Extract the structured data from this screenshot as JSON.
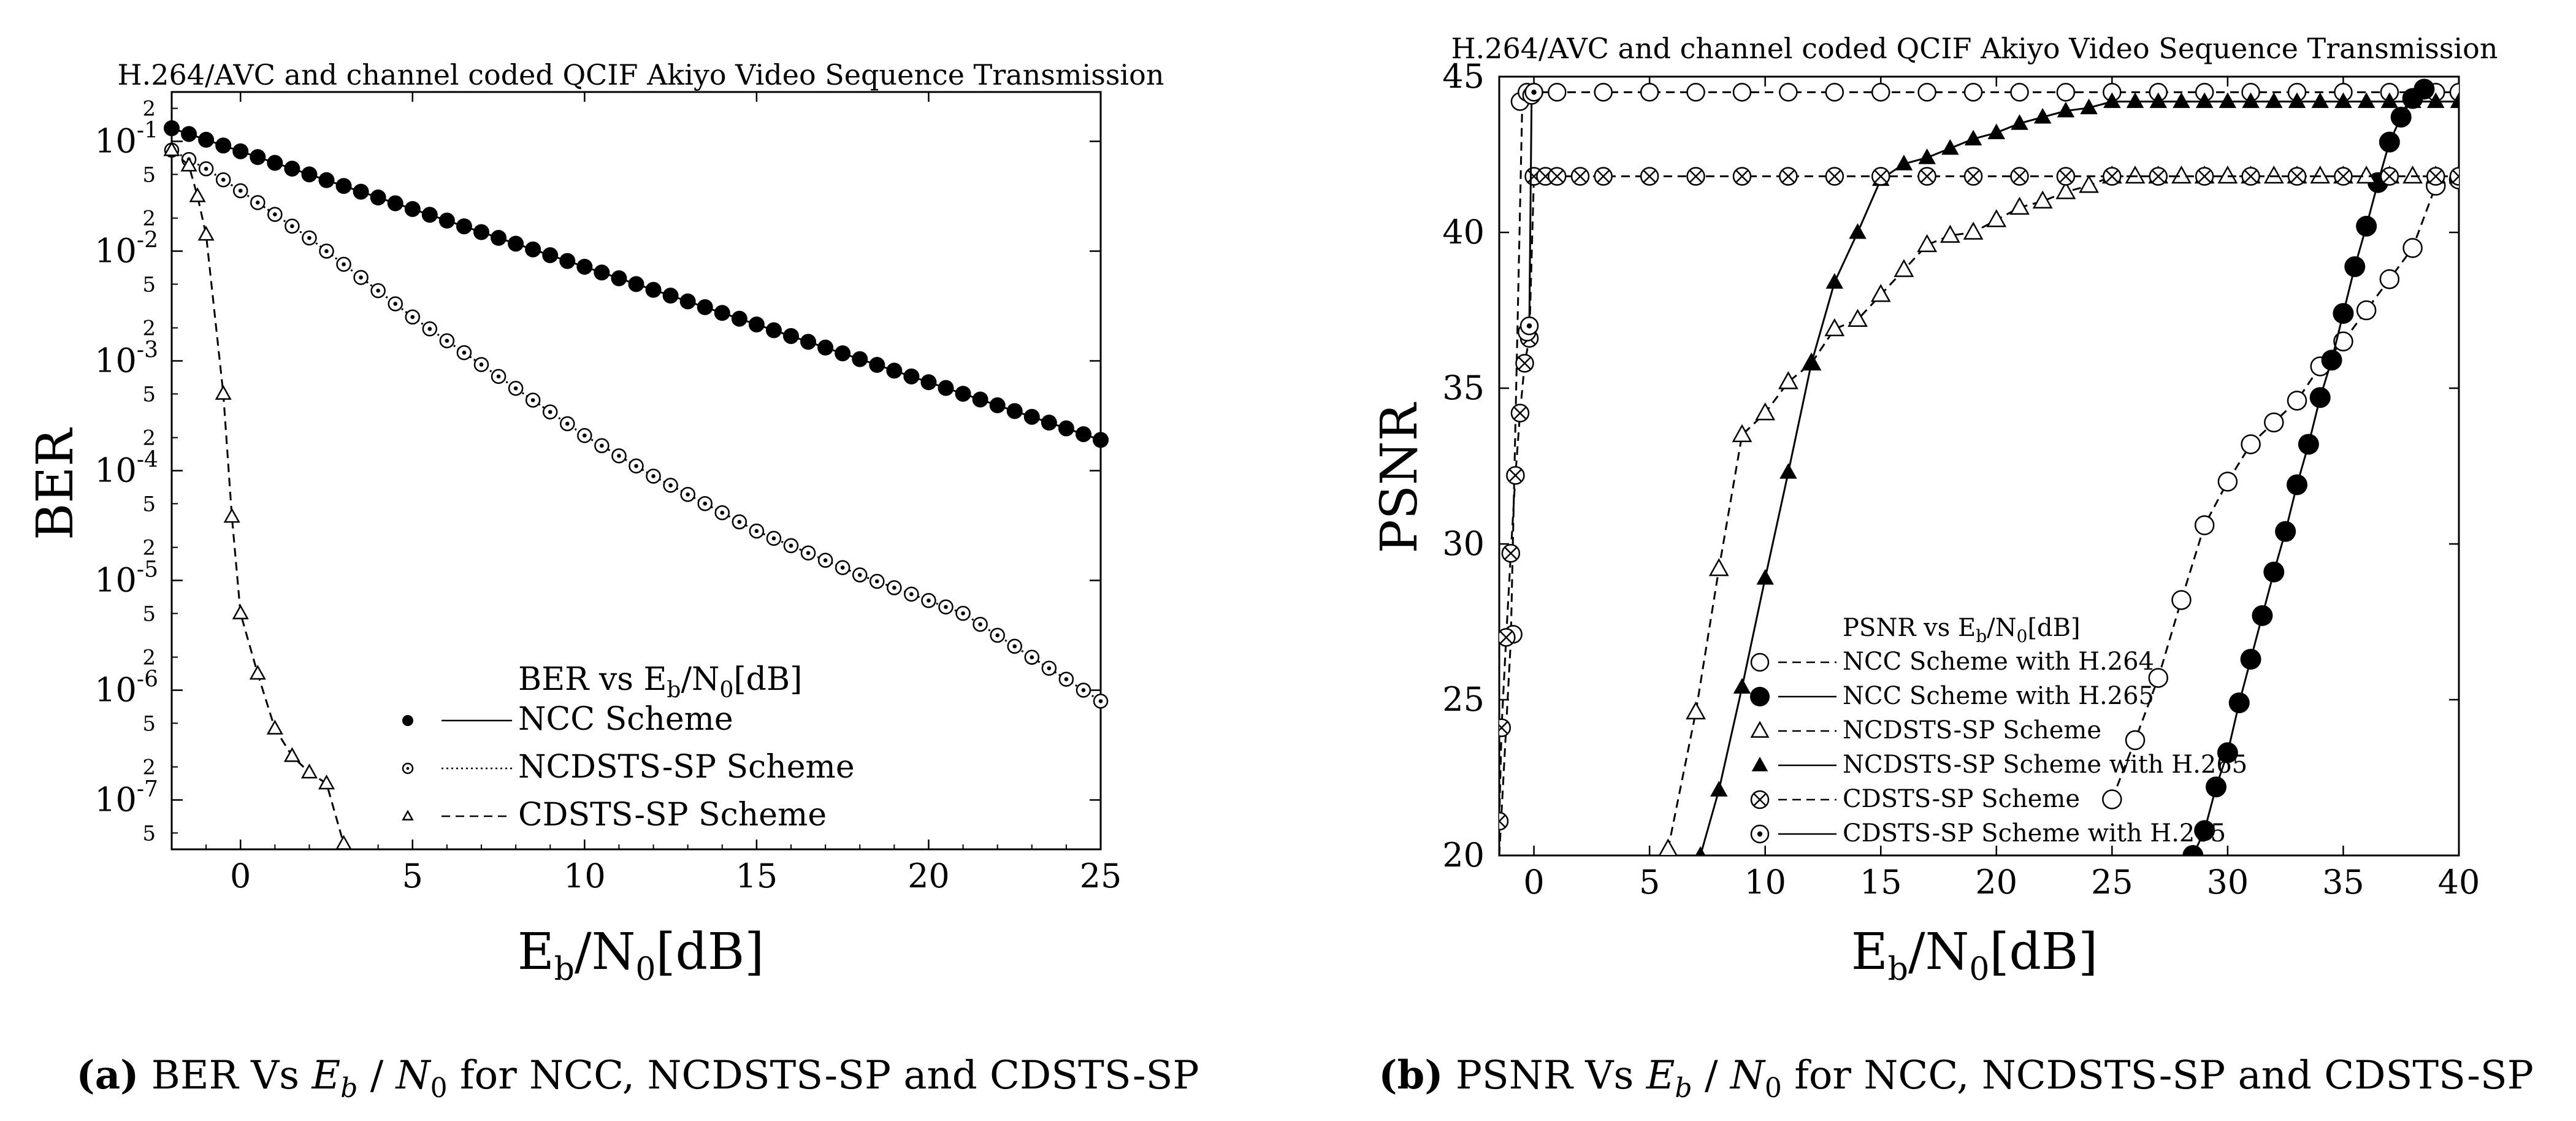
{
  "chart_data": [
    {
      "type": "line",
      "id": "a",
      "title": "H.264/AVC and channel coded QCIF Akiyo Video Sequence Transmission",
      "ylabel": "BER",
      "xlabel_main": "E",
      "xlabel_sub1": "b",
      "xlabel_mid": "/N",
      "xlabel_sub2": "0",
      "xlabel_end": "[dB]",
      "x_ticks": [
        "0",
        "5",
        "10",
        "15",
        "20",
        "25"
      ],
      "y_ticks": [
        {
          "base": "10",
          "exp": "-1"
        },
        {
          "base": "10",
          "exp": "-2"
        },
        {
          "base": "10",
          "exp": "-3"
        },
        {
          "base": "10",
          "exp": "-4"
        },
        {
          "base": "10",
          "exp": "-5"
        },
        {
          "base": "10",
          "exp": "-6"
        },
        {
          "base": "10",
          "exp": "-7"
        }
      ],
      "minor_labels": [
        "5",
        "2"
      ],
      "xlim": [
        -2,
        25
      ],
      "ylim_log10": [
        -7.45,
        -0.55
      ],
      "yscale": "log",
      "legend_title": "BER vs E",
      "legend_title_sub1": "b",
      "legend_title_mid": "/N",
      "legend_title_sub2": "0",
      "legend_title_end": "[dB]",
      "legend_position": "lower-right",
      "series": [
        {
          "name": "NCC Scheme",
          "marker": "filled-circle",
          "style": "solid",
          "x": [
            -2,
            25
          ],
          "logy": [
            -0.88,
            -3.72
          ],
          "step": 0.5
        },
        {
          "name": "NCDSTS-SP Scheme",
          "marker": "dot-circle",
          "style": "dotted",
          "x": [
            -2,
            -1,
            0,
            2,
            5,
            8,
            10,
            12,
            15,
            18,
            21,
            25
          ],
          "logy": [
            -1.08,
            -1.25,
            -1.45,
            -1.88,
            -2.6,
            -3.25,
            -3.68,
            -4.05,
            -4.55,
            -4.95,
            -5.3,
            -6.1
          ],
          "step": 0.5
        },
        {
          "name": "CDSTS-SP Scheme",
          "marker": "triangle",
          "style": "dashed",
          "x": [
            -2,
            -1.5,
            -1.25,
            -1,
            -0.5,
            -0.25,
            0,
            0.5,
            1,
            1.5,
            2,
            2.5,
            3
          ],
          "logy": [
            -1.08,
            -1.22,
            -1.5,
            -1.85,
            -3.3,
            -4.42,
            -5.3,
            -5.85,
            -6.35,
            -6.6,
            -6.75,
            -6.85,
            -7.4
          ]
        }
      ]
    },
    {
      "type": "line",
      "id": "b",
      "title": "H.264/AVC and channel coded QCIF Akiyo Video Sequence Transmission",
      "ylabel": "PSNR",
      "xlabel_main": "E",
      "xlabel_sub1": "b",
      "xlabel_mid": "/N",
      "xlabel_sub2": "0",
      "xlabel_end": "[dB]",
      "x_ticks": [
        "0",
        "5",
        "10",
        "15",
        "20",
        "25",
        "30",
        "35",
        "40"
      ],
      "y_ticks": [
        "20",
        "25",
        "30",
        "35",
        "40",
        "45"
      ],
      "xlim": [
        -1.5,
        40
      ],
      "ylim": [
        20,
        45
      ],
      "legend_title": "PSNR vs E",
      "legend_title_sub1": "b",
      "legend_title_mid": "/N",
      "legend_title_sub2": "0",
      "legend_title_end": "[dB]",
      "legend_position": "lower-right",
      "series": [
        {
          "name": "NCC Scheme with H.264",
          "marker": "open-circle",
          "style": "dashed",
          "x": [
            -1.5,
            -1,
            -0.5,
            0,
            1,
            3,
            5,
            10,
            15,
            20,
            25,
            28,
            30,
            35,
            38,
            40
          ],
          "y": [
            20,
            26.9,
            44.3,
            44.5,
            44.5,
            44.5,
            44.5,
            44.5,
            44.5,
            44.5,
            44.5,
            44.5,
            44.5,
            44.5,
            44.5,
            44.5
          ],
          "markers_x": [
            -0.9,
            -0.6,
            -0.3,
            0,
            1,
            3,
            5,
            7,
            9,
            11,
            13,
            15,
            17,
            19,
            21,
            23,
            25,
            27,
            29,
            31,
            33,
            35,
            37,
            39,
            40
          ],
          "markers_y": [
            27.1,
            44.2,
            44.5,
            44.5,
            44.5,
            44.5,
            44.5,
            44.5,
            44.5,
            44.5,
            44.5,
            44.5,
            44.5,
            44.5,
            44.5,
            44.5,
            44.5,
            44.5,
            44.5,
            44.5,
            44.5,
            44.5,
            44.5,
            44.5,
            44.5
          ],
          "second_x": [
            25,
            26,
            27,
            28,
            29,
            30,
            31,
            32,
            33,
            34,
            35,
            36,
            37,
            38,
            39,
            40
          ],
          "second_y": [
            21.8,
            23.7,
            25.7,
            28.2,
            30.6,
            32.0,
            33.2,
            33.9,
            34.6,
            35.7,
            36.5,
            37.5,
            38.5,
            39.5,
            41.5,
            41.7
          ]
        },
        {
          "name": "NCC Scheme with H.265",
          "marker": "filled-circle",
          "style": "solid",
          "x": [
            28.5,
            29,
            29.5,
            30,
            30.5,
            31,
            31.5,
            32,
            32.5,
            33,
            33.5,
            34,
            34.5,
            35,
            35.5,
            36,
            36.5,
            37,
            37.5,
            38,
            38.5
          ],
          "y": [
            20,
            20.8,
            22.2,
            23.3,
            24.9,
            26.3,
            27.7,
            29.1,
            30.4,
            31.9,
            33.2,
            34.7,
            35.9,
            37.4,
            38.9,
            40.2,
            41.6,
            42.9,
            43.7,
            44.3,
            44.6
          ]
        },
        {
          "name": "NCDSTS-SP Scheme",
          "marker": "triangle-open",
          "style": "dashed",
          "x": [
            5.8,
            7,
            8,
            9,
            10,
            11,
            12,
            13,
            14,
            15,
            16,
            17,
            18,
            19,
            20,
            21,
            22,
            23,
            24,
            25,
            26,
            27,
            28,
            29,
            30,
            31,
            32,
            33,
            34,
            35,
            36,
            37,
            38,
            39,
            40
          ],
          "y": [
            20.2,
            24.6,
            29.2,
            33.5,
            34.2,
            35.2,
            35.8,
            36.9,
            37.2,
            38.0,
            38.8,
            39.6,
            39.9,
            40.0,
            40.4,
            40.8,
            41.0,
            41.3,
            41.5,
            41.8,
            41.8,
            41.8,
            41.8,
            41.8,
            41.8,
            41.8,
            41.8,
            41.8,
            41.8,
            41.8,
            41.8,
            41.8,
            41.8,
            41.8,
            41.8
          ]
        },
        {
          "name": "NCDSTS-SP Scheme with H.265",
          "marker": "triangle-filled",
          "style": "solid",
          "x": [
            7.2,
            8,
            9,
            10,
            11,
            12,
            13,
            14,
            15,
            16,
            17,
            18,
            19,
            20,
            21,
            22,
            23,
            24,
            25,
            26,
            27,
            28,
            29,
            30,
            31,
            32,
            33,
            34,
            35,
            36,
            37,
            38,
            39,
            40
          ],
          "y": [
            20,
            22.1,
            25.4,
            28.9,
            32.3,
            35.8,
            38.4,
            40.0,
            41.7,
            42.2,
            42.4,
            42.7,
            43.0,
            43.2,
            43.5,
            43.7,
            43.9,
            44.0,
            44.2,
            44.2,
            44.2,
            44.2,
            44.2,
            44.2,
            44.2,
            44.2,
            44.2,
            44.2,
            44.2,
            44.2,
            44.2,
            44.2,
            44.2,
            44.2
          ]
        },
        {
          "name": "CDSTS-SP Scheme",
          "marker": "crossed-circle",
          "style": "dashed",
          "x": [
            -1.5,
            -1.4,
            -1.2,
            -1.0,
            -0.8,
            -0.6,
            -0.4,
            -0.2,
            0,
            0.5,
            1,
            2,
            3,
            5,
            7,
            9,
            11,
            13,
            15,
            17,
            19,
            21,
            23,
            25,
            27,
            29,
            31,
            33,
            35,
            37,
            39,
            40
          ],
          "y": [
            21.1,
            24.1,
            27.0,
            29.7,
            32.2,
            34.2,
            35.8,
            36.6,
            41.8,
            41.8,
            41.8,
            41.8,
            41.8,
            41.8,
            41.8,
            41.8,
            41.8,
            41.8,
            41.8,
            41.8,
            41.8,
            41.8,
            41.8,
            41.8,
            41.8,
            41.8,
            41.8,
            41.8,
            41.8,
            41.8,
            41.8,
            41.8
          ]
        },
        {
          "name": "CDSTS-SP Scheme with H.265",
          "marker": "dot-circle",
          "style": "solid",
          "x": [
            -0.3,
            -0.2,
            -0.1,
            0
          ],
          "y": [
            36.8,
            37.0,
            44.4,
            44.5
          ]
        }
      ]
    }
  ],
  "captions": {
    "a": {
      "label": "(a)",
      "text_before": " BER Vs ",
      "var1": "E",
      "sub1": "b",
      "slash": " / ",
      "var2": "N",
      "sub2": "0",
      "text_after": " for NCC, NCDSTS-SP and CDSTS-SP"
    },
    "b": {
      "label": "(b)",
      "text_before": " PSNR Vs ",
      "var1": "E",
      "sub1": "b",
      "slash": " / ",
      "var2": "N",
      "sub2": "0",
      "text_after": " for NCC, NCDSTS-SP and CDSTS-SP"
    }
  }
}
